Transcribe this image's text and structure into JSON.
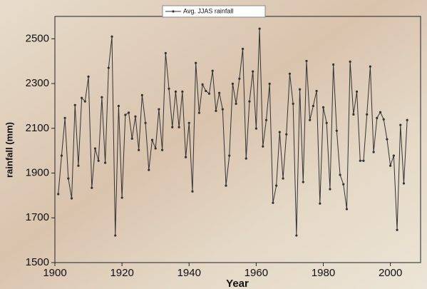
{
  "chart_data": {
    "type": "line",
    "x_label": "Year",
    "y_label": "rainfall (mm)",
    "x": [
      1901,
      1902,
      1903,
      1904,
      1905,
      1906,
      1907,
      1908,
      1909,
      1910,
      1911,
      1912,
      1913,
      1914,
      1915,
      1916,
      1917,
      1918,
      1919,
      1920,
      1921,
      1922,
      1923,
      1924,
      1925,
      1926,
      1927,
      1928,
      1929,
      1930,
      1931,
      1932,
      1933,
      1934,
      1935,
      1936,
      1937,
      1938,
      1939,
      1940,
      1941,
      1942,
      1943,
      1944,
      1945,
      1946,
      1947,
      1948,
      1949,
      1950,
      1951,
      1952,
      1953,
      1954,
      1955,
      1956,
      1957,
      1958,
      1959,
      1960,
      1961,
      1962,
      1963,
      1964,
      1965,
      1966,
      1967,
      1968,
      1969,
      1970,
      1971,
      1972,
      1973,
      1974,
      1975,
      1976,
      1977,
      1978,
      1979,
      1980,
      1981,
      1982,
      1983,
      1984,
      1985,
      1986,
      1987,
      1988,
      1989,
      1990,
      1991,
      1992,
      1993,
      1994,
      1995,
      1996,
      1997,
      1998,
      1999,
      2000,
      2001,
      2002,
      2003,
      2004,
      2005
    ],
    "series": [
      {
        "name": "Avg. JJAS rainfall",
        "color": "#333333",
        "values": [
          1806,
          1978,
          2146,
          1876,
          1787,
          2204,
          1933,
          2236,
          2220,
          2331,
          1834,
          2010,
          1955,
          2239,
          1946,
          2370,
          2510,
          1621,
          2200,
          1790,
          2160,
          2170,
          2054,
          2153,
          2003,
          2248,
          2124,
          1914,
          2048,
          2010,
          2185,
          2003,
          2436,
          2277,
          2105,
          2264,
          2105,
          2264,
          1971,
          2124,
          1818,
          2392,
          2169,
          2296,
          2267,
          2255,
          2357,
          2178,
          2258,
          2185,
          1844,
          1978,
          2299,
          2210,
          2322,
          2455,
          1965,
          2220,
          2354,
          2099,
          2545,
          2019,
          2137,
          2299,
          1767,
          1844,
          2083,
          1876,
          2073,
          2344,
          2210,
          1621,
          2274,
          1860,
          2401,
          2137,
          2200,
          2267,
          1764,
          2194,
          2124,
          1828,
          2385,
          2089,
          1892,
          1850,
          1739,
          2398,
          2162,
          2264,
          1955,
          1955,
          2162,
          2376,
          1994,
          2146,
          2172,
          2140,
          2051,
          1933,
          1978,
          1646,
          2115,
          1854,
          2137
        ]
      }
    ],
    "xlim": [
      1900,
      2009
    ],
    "xticks": [
      1900,
      1920,
      1940,
      1960,
      1980,
      2000
    ],
    "ylim": [
      1500,
      2600
    ],
    "yticks": [
      1500,
      1700,
      1900,
      2100,
      2300,
      2500
    ],
    "legend": "top"
  }
}
